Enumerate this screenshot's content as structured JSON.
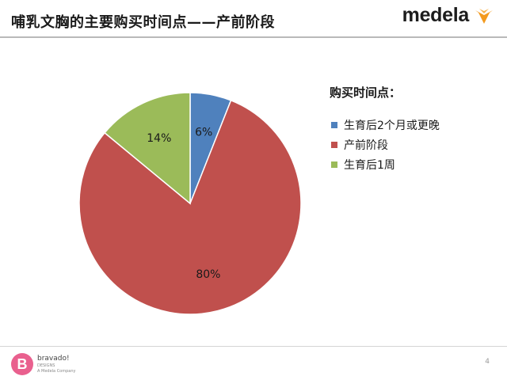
{
  "slide": {
    "title": "哺乳文胸的主要购买时间点——产前阶段",
    "page_number": "4"
  },
  "brand": {
    "name": "medela",
    "icon": "medela-logo-icon",
    "accent": "#f39a1e"
  },
  "footer": {
    "brand": "bravado!",
    "brand_line2": "DESIGNS",
    "brand_line3": "A Medela Company",
    "icon": "bravado-logo-icon",
    "accent": "#e9608e"
  },
  "chart_data": {
    "type": "pie",
    "title": "",
    "legend_title": "购买时间点：",
    "legend_position": "right",
    "start_angle_deg": 0,
    "direction": "clockwise",
    "slices": [
      {
        "label": "生育后2个月或更晚",
        "value": 6,
        "display": "6%",
        "color": "#4f81bd"
      },
      {
        "label": "产前阶段",
        "value": 80,
        "display": "80%",
        "color": "#c0504d"
      },
      {
        "label": "生育后1周",
        "value": 14,
        "display": "14%",
        "color": "#9bbb59"
      }
    ]
  }
}
